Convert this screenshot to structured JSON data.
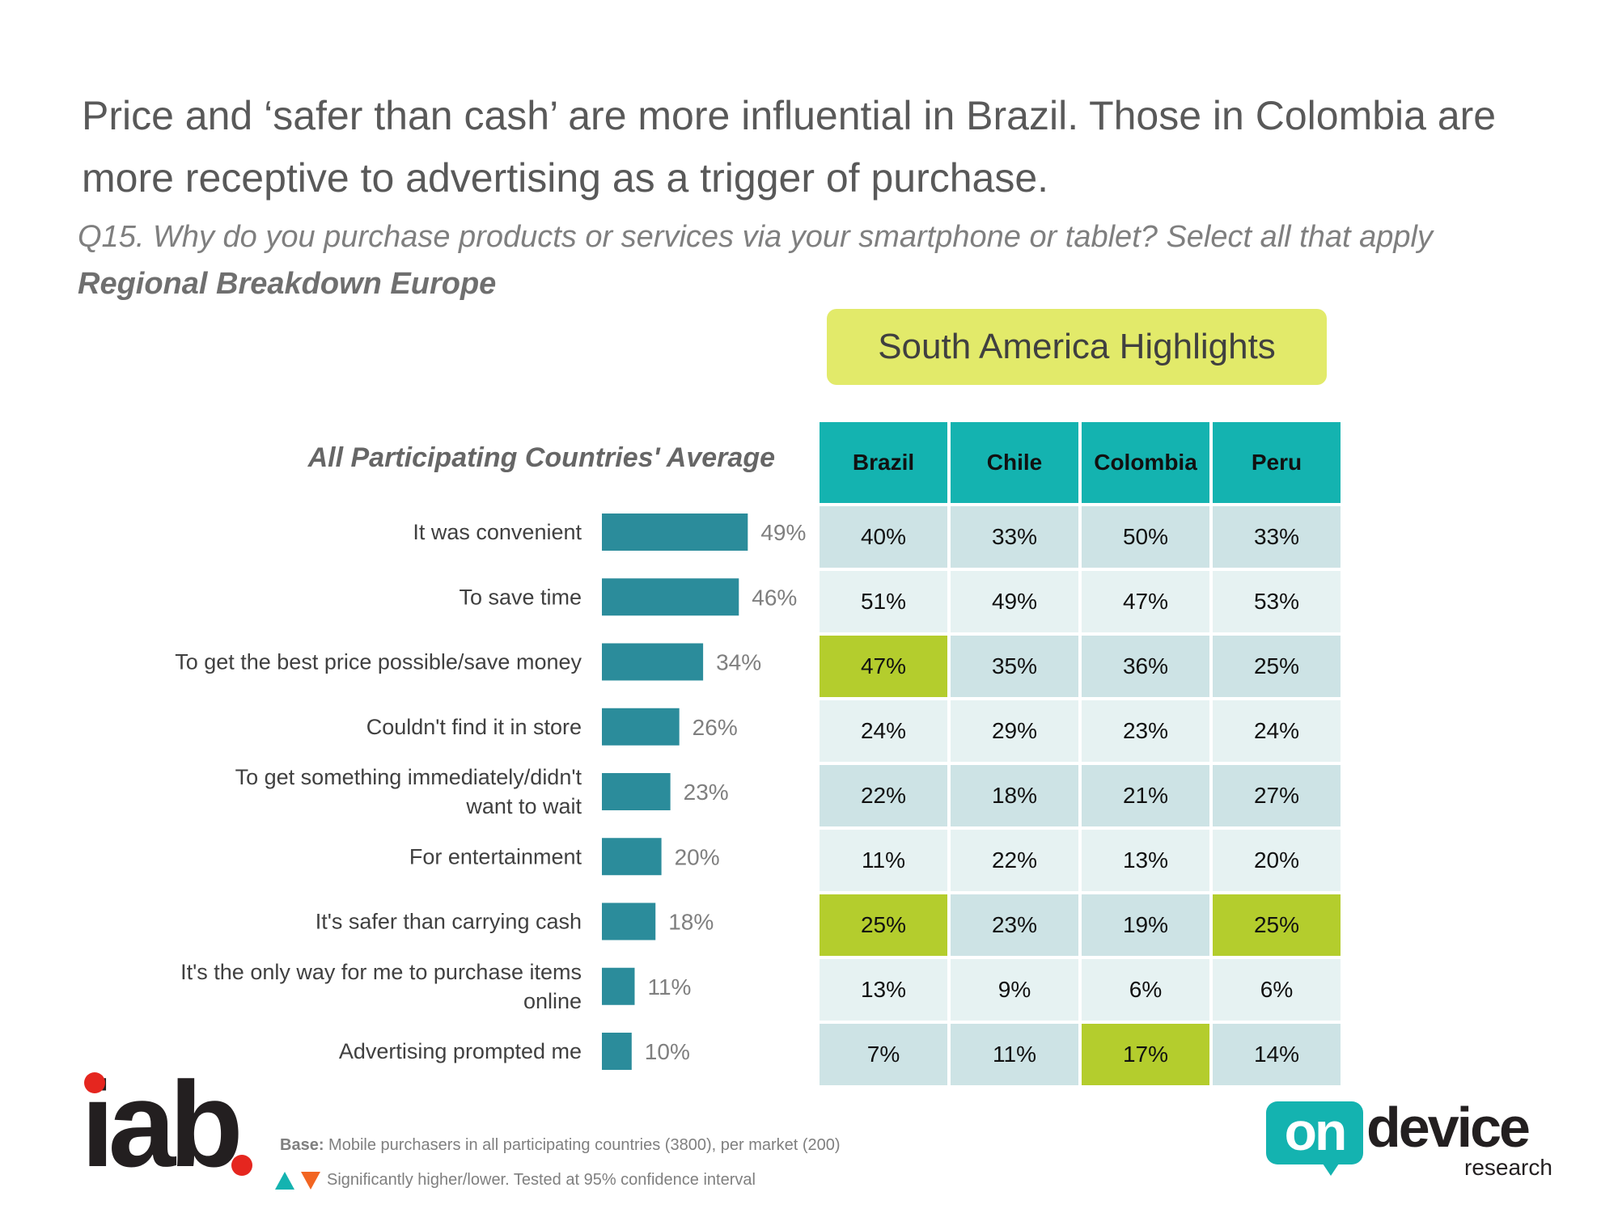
{
  "headline": "Price and ‘safer than cash’ are more influential in Brazil. Those in Colombia are more receptive to advertising as a trigger of purchase.",
  "question": "Q15. Why do you purchase products or services via your smartphone or tablet? Select all that apply",
  "subtitle": "Regional Breakdown Europe",
  "highlight_box": "South America Highlights",
  "colors": {
    "bar": "#2b8c9b",
    "header": "#14b3b0",
    "highlight": "#b4cd2d",
    "highlight_box": "#e2ea6a"
  },
  "chart_data": {
    "type": "bar",
    "orientation": "horizontal",
    "title": "All Participating Countries' Average",
    "categories": [
      [
        "It was convenient"
      ],
      [
        "To save time"
      ],
      [
        "To get the best price possible/save money"
      ],
      [
        "Couldn't find it in store"
      ],
      [
        "To get something immediately/didn't",
        "want to wait"
      ],
      [
        "For entertainment"
      ],
      [
        "It's safer than carrying cash"
      ],
      [
        "It's the only way for me to purchase items",
        "online"
      ],
      [
        "Advertising prompted me"
      ]
    ],
    "values": [
      49,
      46,
      34,
      26,
      23,
      20,
      18,
      11,
      10
    ],
    "value_labels": [
      "49%",
      "46%",
      "34%",
      "26%",
      "23%",
      "20%",
      "18%",
      "11%",
      "10%"
    ],
    "xlim": [
      0,
      60
    ]
  },
  "table": {
    "columns": [
      "Brazil",
      "Chile",
      "Colombia",
      "Peru"
    ],
    "rows": [
      [
        "40%",
        "33%",
        "50%",
        "33%"
      ],
      [
        "51%",
        "49%",
        "47%",
        "53%"
      ],
      [
        "47%",
        "35%",
        "36%",
        "25%"
      ],
      [
        "24%",
        "29%",
        "23%",
        "24%"
      ],
      [
        "22%",
        "18%",
        "21%",
        "27%"
      ],
      [
        "11%",
        "22%",
        "13%",
        "20%"
      ],
      [
        "25%",
        "23%",
        "19%",
        "25%"
      ],
      [
        "13%",
        "9%",
        "6%",
        "6%"
      ],
      [
        "7%",
        "11%",
        "17%",
        "14%"
      ]
    ],
    "highlighted": [
      [
        2,
        0
      ],
      [
        6,
        0
      ],
      [
        6,
        3
      ],
      [
        8,
        2
      ]
    ]
  },
  "footer": {
    "base_label": "Base:",
    "base_text": "Mobile purchasers in all participating countries (3800), per market (200)",
    "significance": "Significantly higher/lower. Tested at 95% confidence interval"
  },
  "logos": {
    "iab": "iab",
    "ondevice_on": "on",
    "ondevice_device": "device",
    "ondevice_research": "research"
  }
}
